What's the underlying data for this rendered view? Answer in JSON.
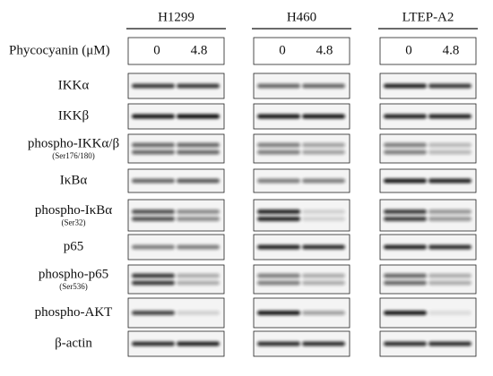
{
  "dose_label": "Phycocyanin (μM)",
  "columns": [
    {
      "title": "H1299",
      "doses": [
        "0",
        "4.8"
      ]
    },
    {
      "title": "H460",
      "doses": [
        "0",
        "4.8"
      ]
    },
    {
      "title": "LTEP-A2",
      "doses": [
        "0",
        "4.8"
      ]
    }
  ],
  "rows": [
    {
      "label": "IKKα"
    },
    {
      "label": "IKKβ"
    },
    {
      "label": "phospho-IKKα/β",
      "sublabel": "(Ser176/180)"
    },
    {
      "label": "IκBα"
    },
    {
      "label": "phospho-IκBα",
      "sublabel": "(Ser32)"
    },
    {
      "label": "p65"
    },
    {
      "label": "phospho-p65",
      "sublabel": "(Ser536)"
    },
    {
      "label": "phospho-AKT"
    },
    {
      "label": "β-actin"
    }
  ]
}
